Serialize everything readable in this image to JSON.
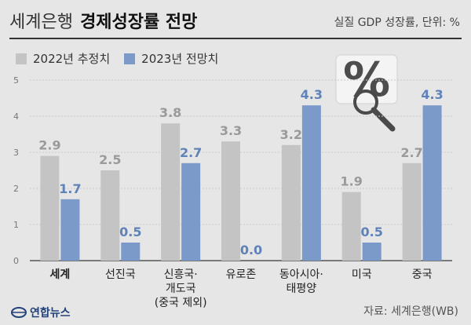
{
  "title": {
    "prefix": "세계은행",
    "main": "경제성장률 전망"
  },
  "subtitle": "실질 GDP 성장률, 단위: %",
  "legend": [
    {
      "label": "2022년 추정치",
      "color": "#c4c4c4"
    },
    {
      "label": "2023년 전망치",
      "color": "#7b9ac9"
    }
  ],
  "source": "자료: 세계은행(WB)",
  "logo_text": "연합뉴스",
  "chart_data": {
    "type": "bar",
    "categories": [
      "세계",
      "선진국",
      "신흥국·\n개도국\n(중국 제외)",
      "유로존",
      "동아시아·\n태평양",
      "미국",
      "중국"
    ],
    "series": [
      {
        "name": "2022년 추정치",
        "values": [
          2.9,
          2.5,
          3.8,
          3.3,
          3.2,
          1.9,
          2.7
        ],
        "color": "#c4c4c4",
        "label_color": "#9a9a9a"
      },
      {
        "name": "2023년 전망치",
        "values": [
          1.7,
          0.5,
          2.7,
          0.0,
          4.3,
          0.5,
          4.3
        ],
        "color": "#7b9ac9",
        "label_color": "#5f82b8"
      }
    ],
    "ylim": [
      0,
      5
    ],
    "yticks": [
      0,
      1,
      2,
      3,
      4,
      5
    ],
    "grid": true,
    "bold_category_index": 0
  }
}
